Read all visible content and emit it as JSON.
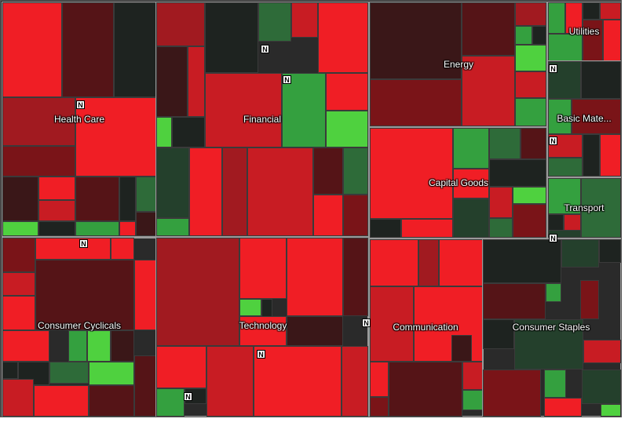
{
  "colors": {
    "r1": "#f01e25",
    "r2": "#c81c23",
    "r3": "#a11a20",
    "r4": "#7a1418",
    "r5": "#551417",
    "r6": "#3a1718",
    "k0": "#1e2320",
    "g1": "#24402c",
    "g2": "#2e6b39",
    "g3": "#34a03f",
    "g4": "#4fd13f"
  },
  "news_badge": {
    "label": "N"
  },
  "sectors": [
    {
      "name": "Health Care",
      "tiles": [
        {
          "c": "r1"
        },
        {
          "c": "r5"
        },
        {
          "c": "k0"
        },
        {
          "c": "r3"
        },
        {
          "c": "r1"
        },
        {
          "c": "r4"
        },
        {
          "c": "r6"
        },
        {
          "c": "r1"
        },
        {
          "c": "r5"
        },
        {
          "c": "k0"
        },
        {
          "c": "g2"
        },
        {
          "c": "g4"
        },
        {
          "c": "r2"
        },
        {
          "c": "k0"
        },
        {
          "c": "g3"
        },
        {
          "c": "r1"
        },
        {
          "c": "r6"
        }
      ]
    },
    {
      "name": "Financial",
      "tiles": [
        {
          "c": "r3"
        },
        {
          "c": "k0"
        },
        {
          "c": "g2"
        },
        {
          "c": "r2"
        },
        {
          "c": "r1"
        },
        {
          "c": "r2"
        },
        {
          "c": "g3"
        },
        {
          "c": "r1"
        },
        {
          "c": "g4"
        },
        {
          "c": "r6"
        },
        {
          "c": "r2"
        },
        {
          "c": "g1"
        },
        {
          "c": "r1"
        },
        {
          "c": "r3"
        },
        {
          "c": "r2"
        },
        {
          "c": "g4"
        },
        {
          "c": "k0"
        },
        {
          "c": "r5"
        },
        {
          "c": "g2"
        },
        {
          "c": "g3"
        },
        {
          "c": "r1"
        },
        {
          "c": "r4"
        }
      ]
    },
    {
      "name": "Energy",
      "tiles": [
        {
          "c": "r6"
        },
        {
          "c": "r5"
        },
        {
          "c": "r4"
        },
        {
          "c": "r2"
        },
        {
          "c": "r3"
        },
        {
          "c": "g3"
        },
        {
          "c": "k0"
        },
        {
          "c": "g4"
        },
        {
          "c": "r2"
        },
        {
          "c": "g3"
        }
      ]
    },
    {
      "name": "Utilities",
      "tiles": [
        {
          "c": "g3"
        },
        {
          "c": "r1"
        },
        {
          "c": "k0"
        },
        {
          "c": "r2"
        },
        {
          "c": "g3"
        },
        {
          "c": "r4"
        },
        {
          "c": "r1"
        }
      ]
    },
    {
      "name": "Basic Mate...",
      "tiles": [
        {
          "c": "g1"
        },
        {
          "c": "k0"
        },
        {
          "c": "g3"
        },
        {
          "c": "r4"
        },
        {
          "c": "r2"
        },
        {
          "c": "k0"
        },
        {
          "c": "g2"
        },
        {
          "c": "r1"
        }
      ]
    },
    {
      "name": "Capital Goods",
      "tiles": [
        {
          "c": "r1"
        },
        {
          "c": "g3"
        },
        {
          "c": "g2"
        },
        {
          "c": "r5"
        },
        {
          "c": "r1"
        },
        {
          "c": "k0"
        },
        {
          "c": "r2"
        },
        {
          "c": "g4"
        },
        {
          "c": "r4"
        },
        {
          "c": "g1"
        },
        {
          "c": "r1"
        },
        {
          "c": "k0"
        },
        {
          "c": "g2"
        }
      ]
    },
    {
      "name": "Transport",
      "tiles": [
        {
          "c": "g3"
        },
        {
          "c": "g2"
        },
        {
          "c": "k0"
        },
        {
          "c": "r2"
        },
        {
          "c": "g1"
        }
      ]
    },
    {
      "name": "Consumer Cyclicals",
      "tiles": [
        {
          "c": "r4"
        },
        {
          "c": "r1"
        },
        {
          "c": "r1"
        },
        {
          "c": "r5"
        },
        {
          "c": "r2"
        },
        {
          "c": "r1"
        },
        {
          "c": "r1"
        },
        {
          "c": "k0"
        },
        {
          "c": "g3"
        },
        {
          "c": "r1"
        },
        {
          "c": "g4"
        },
        {
          "c": "r6"
        },
        {
          "c": "r5"
        },
        {
          "c": "g2"
        },
        {
          "c": "k0"
        },
        {
          "c": "r2"
        },
        {
          "c": "g4"
        },
        {
          "c": "r1"
        },
        {
          "c": "r5"
        }
      ]
    },
    {
      "name": "Technology",
      "tiles": [
        {
          "c": "r3"
        },
        {
          "c": "r1"
        },
        {
          "c": "r1"
        },
        {
          "c": "r5"
        },
        {
          "c": "g4"
        },
        {
          "c": "k0"
        },
        {
          "c": "r6"
        },
        {
          "c": "r1"
        },
        {
          "c": "r1"
        },
        {
          "c": "r2"
        },
        {
          "c": "r1"
        },
        {
          "c": "g3"
        },
        {
          "c": "k0"
        },
        {
          "c": "r2"
        }
      ]
    },
    {
      "name": "Communication",
      "tiles": [
        {
          "c": "r1"
        },
        {
          "c": "r3"
        },
        {
          "c": "r1"
        },
        {
          "c": "r2"
        },
        {
          "c": "r1"
        },
        {
          "c": "r6"
        },
        {
          "c": "r5"
        },
        {
          "c": "r1"
        },
        {
          "c": "r4"
        },
        {
          "c": "g3"
        },
        {
          "c": "r2"
        }
      ]
    },
    {
      "name": "Consumer Staples",
      "tiles": [
        {
          "c": "k0"
        },
        {
          "c": "g1"
        },
        {
          "c": "r5"
        },
        {
          "c": "g3"
        },
        {
          "c": "r4"
        },
        {
          "c": "k0"
        },
        {
          "c": "k0"
        },
        {
          "c": "g1"
        },
        {
          "c": "r2"
        },
        {
          "c": "r4"
        },
        {
          "c": "g3"
        },
        {
          "c": "r1"
        },
        {
          "c": "g1"
        },
        {
          "c": "g4"
        }
      ]
    }
  ]
}
